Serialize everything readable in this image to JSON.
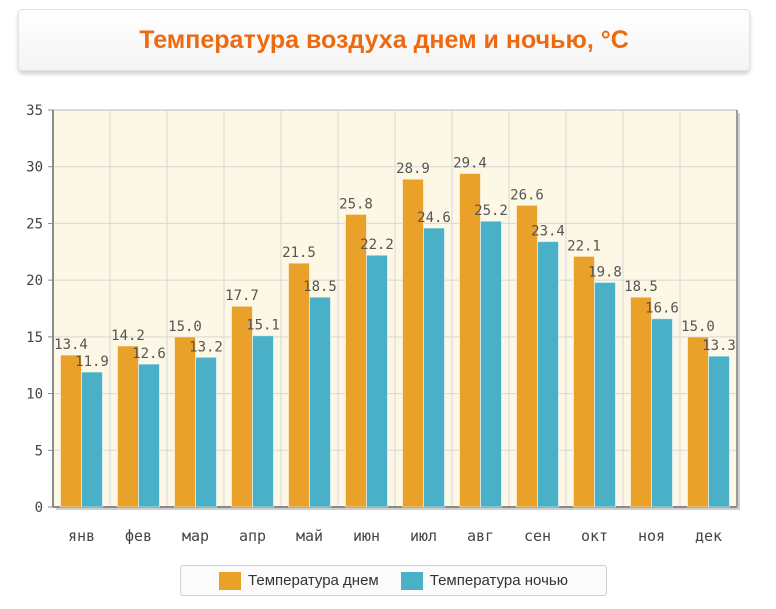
{
  "title": "Температура воздуха днем и ночью, °C",
  "colors": {
    "day": "#e9a12a",
    "night": "#4ab0c7",
    "plot_background": "#fdf7e6",
    "grid": "#d7d7d7",
    "axis": "#8a8a8a"
  },
  "legend": {
    "day_label": "Температура днем",
    "night_label": "Температура ночью"
  },
  "chart_data": {
    "type": "bar",
    "title": "Температура воздуха днем и ночью, °C",
    "categories": [
      "янв",
      "фев",
      "мар",
      "апр",
      "май",
      "июн",
      "июл",
      "авг",
      "сен",
      "окт",
      "ноя",
      "дек"
    ],
    "series": [
      {
        "name": "Температура днем",
        "values": [
          13.4,
          14.2,
          15.0,
          17.7,
          21.5,
          25.8,
          28.9,
          29.4,
          26.6,
          22.1,
          18.5,
          15.0
        ]
      },
      {
        "name": "Температура ночью",
        "values": [
          11.9,
          12.6,
          13.2,
          15.1,
          18.5,
          22.2,
          24.6,
          25.2,
          23.4,
          19.8,
          16.6,
          13.3
        ]
      }
    ],
    "ylim": [
      0,
      35
    ],
    "yticks": [
      0,
      5,
      10,
      15,
      20,
      25,
      30,
      35
    ],
    "xlabel": "",
    "ylabel": "",
    "grid": true,
    "legend_position": "bottom-center"
  }
}
